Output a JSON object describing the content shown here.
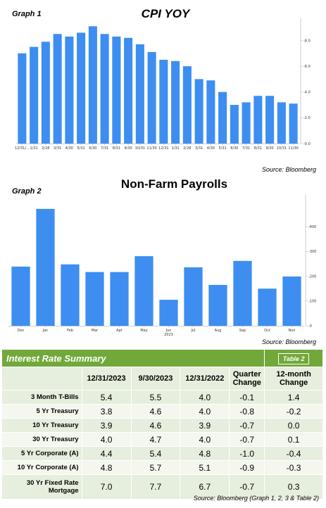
{
  "charts": {
    "graph1": {
      "label": "Graph 1",
      "title": "CPI YOY",
      "source": "Source: Bloomberg"
    },
    "graph2": {
      "label": "Graph 2",
      "title": "Non-Farm Payrolls",
      "source": "Source: Bloomberg"
    }
  },
  "chart_data": [
    {
      "type": "bar",
      "title": "CPI YOY",
      "categories": [
        "12/31/...",
        "1/31",
        "2/28",
        "3/31",
        "4/30",
        "5/31",
        "6/30",
        "7/31",
        "8/31",
        "9/30",
        "10/31",
        "11/30",
        "12/31",
        "1/31",
        "2/28",
        "3/31",
        "4/30",
        "5/31",
        "6/30",
        "7/31",
        "8/31",
        "9/30",
        "10/31",
        "11/30"
      ],
      "values": [
        7.0,
        7.5,
        7.9,
        8.5,
        8.3,
        8.6,
        9.1,
        8.5,
        8.3,
        8.2,
        7.7,
        7.1,
        6.5,
        6.4,
        6.0,
        5.0,
        4.9,
        4.0,
        3.0,
        3.2,
        3.7,
        3.7,
        3.2,
        3.1
      ],
      "y_ticks": [
        "0.0",
        "2.0",
        "4.0",
        "6.0",
        "8.0"
      ],
      "ylim": [
        0,
        9.5
      ],
      "color": "#3d8ef0",
      "grid": false
    },
    {
      "type": "bar",
      "title": "Non-Farm Payrolls",
      "categories": [
        "Dec",
        "Jan",
        "Feb",
        "Mar",
        "Apr",
        "May",
        "Jun",
        "Jul",
        "Aug",
        "Sep",
        "Oct",
        "Nov"
      ],
      "category_sublabel": {
        "index": 6,
        "text": "2023"
      },
      "values": [
        239,
        472,
        248,
        217,
        217,
        281,
        105,
        236,
        165,
        262,
        150,
        199
      ],
      "y_ticks": [
        "0",
        "100",
        "200",
        "300",
        "400"
      ],
      "ylim": [
        0,
        520
      ],
      "color": "#3d8ef0",
      "grid": false
    }
  ],
  "table": {
    "title": "Interest Rate Summary",
    "tag": "Table 2",
    "headers": [
      "",
      "12/31/2023",
      "9/30/2023",
      "12/31/2022",
      "Quarter Change",
      "12-month Change"
    ],
    "rows": [
      {
        "name": "3 Month T-Bills",
        "cells": [
          "5.4",
          "5.5",
          "4.0",
          "-0.1",
          "1.4"
        ]
      },
      {
        "name": "5 Yr Treasury",
        "cells": [
          "3.8",
          "4.6",
          "4.0",
          "-0.8",
          "-0.2"
        ]
      },
      {
        "name": "10 Yr Treasury",
        "cells": [
          "3.9",
          "4.6",
          "3.9",
          "-0.7",
          "0.0"
        ]
      },
      {
        "name": "30 Yr Treasury",
        "cells": [
          "4.0",
          "4.7",
          "4.0",
          "-0.7",
          "0.1"
        ]
      },
      {
        "name": "5 Yr Corporate (A)",
        "cells": [
          "4.4",
          "5.4",
          "4.8",
          "-1.0",
          "-0.4"
        ]
      },
      {
        "name": "10 Yr Corporate (A)",
        "cells": [
          "4.8",
          "5.7",
          "5.1",
          "-0.9",
          "-0.3"
        ]
      },
      {
        "name": "30 Yr Fixed Rate Mortgage",
        "cells": [
          "7.0",
          "7.7",
          "6.7",
          "-0.7",
          "0.3"
        ]
      }
    ],
    "source": "Source: Bloomberg (Graph 1, 2, 3 & Table 2)"
  }
}
